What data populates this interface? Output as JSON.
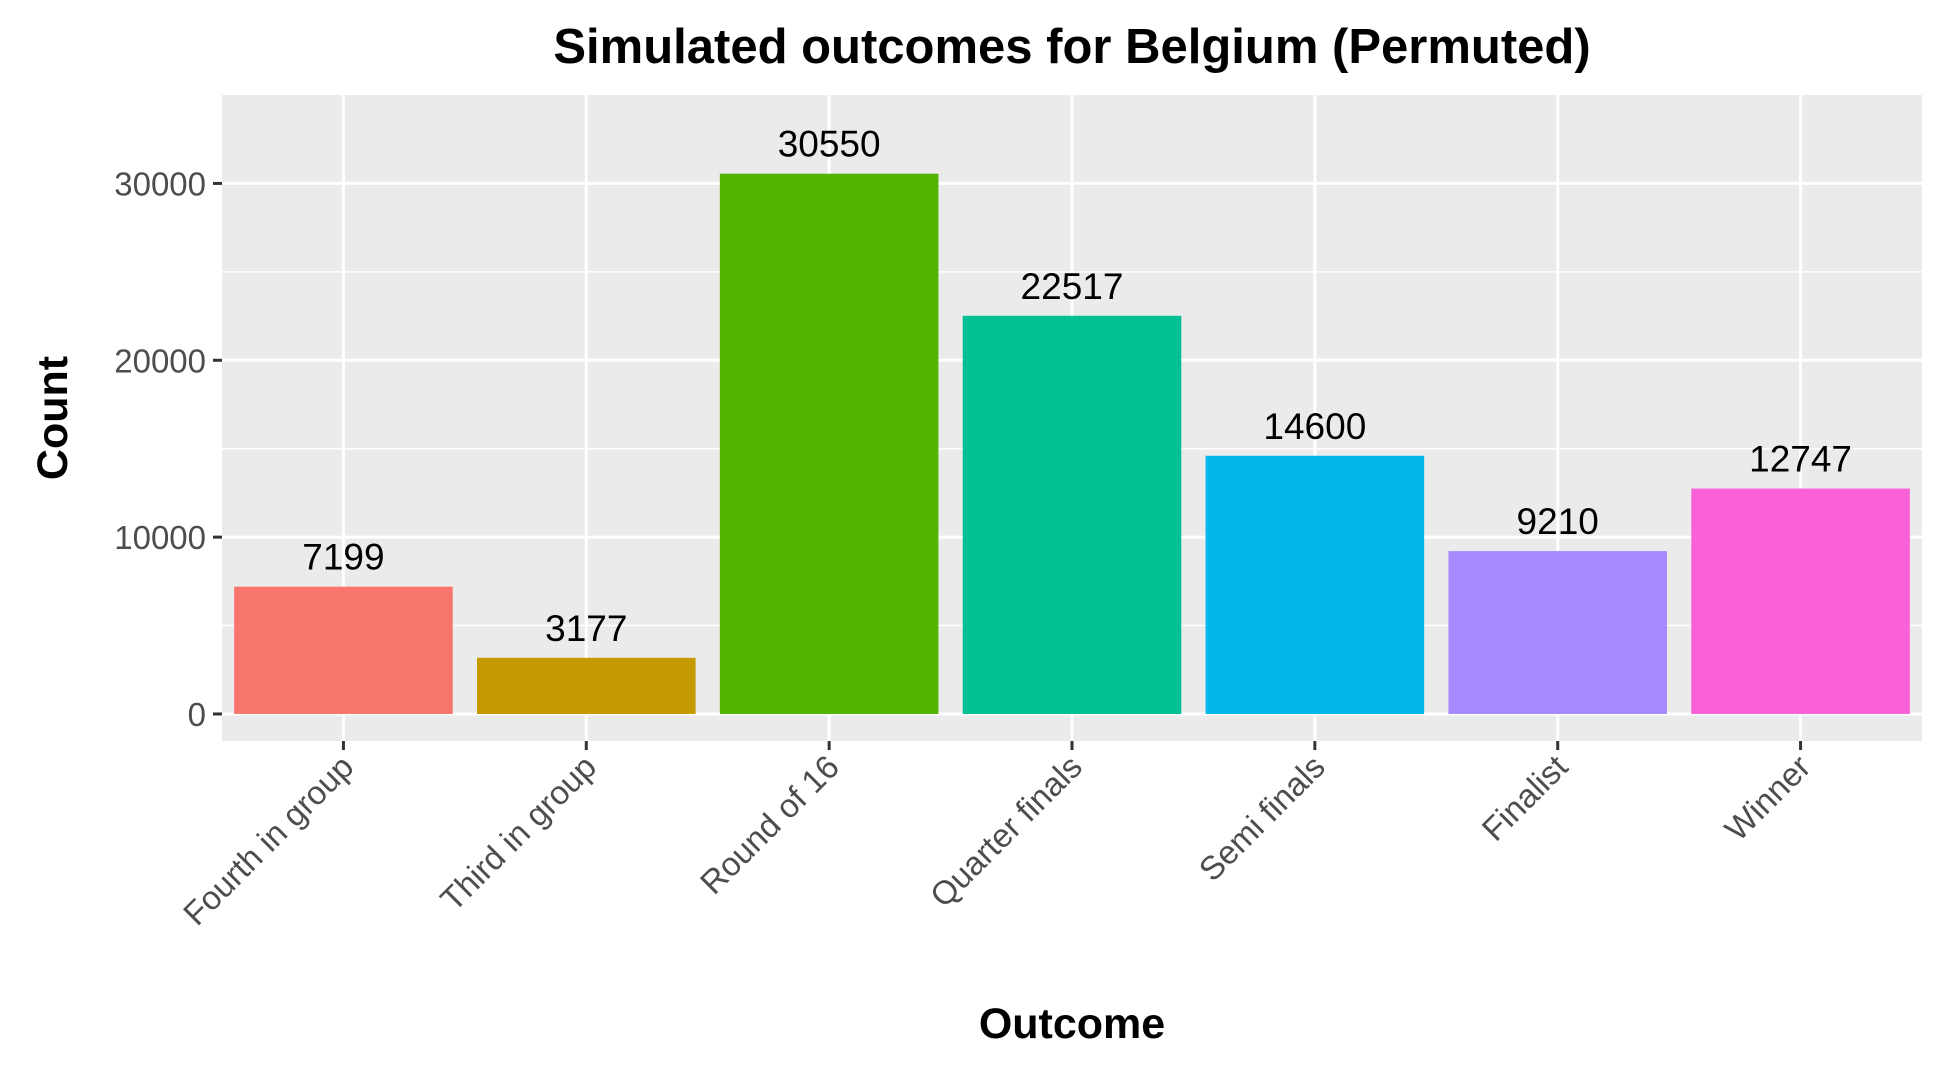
{
  "chart_data": {
    "type": "bar",
    "title": "Simulated outcomes for Belgium (Permuted)",
    "xlabel": "Outcome",
    "ylabel": "Count",
    "categories": [
      "Fourth in group",
      "Third in group",
      "Round of 16",
      "Quarter finals",
      "Semi finals",
      "Finalist",
      "Winner"
    ],
    "values": [
      7199,
      3177,
      30550,
      22517,
      14600,
      9210,
      12747
    ],
    "colors": [
      "#F8766D",
      "#C49A00",
      "#53B400",
      "#00C094",
      "#00B6EB",
      "#A58AFF",
      "#FB61D7"
    ],
    "ylim": [
      -1528,
      35000
    ],
    "yticks": [
      0,
      10000,
      20000,
      30000
    ],
    "grid": true,
    "legend": "none"
  }
}
